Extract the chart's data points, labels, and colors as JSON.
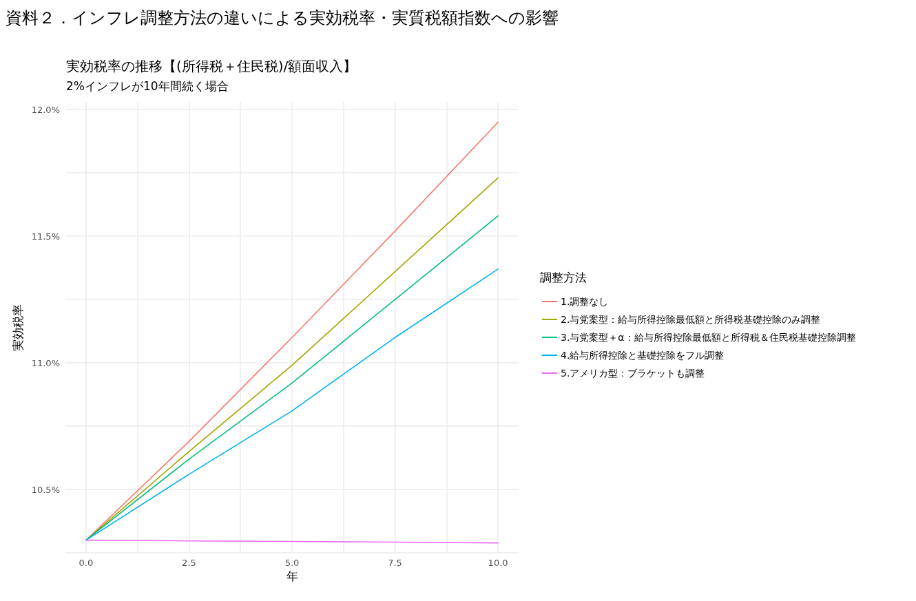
{
  "chart_data": {
    "type": "line",
    "title": "資料２．インフレ調整方法の違いによる実効税率・実質税額指数への影響",
    "subtitle": "実効税率の推移【(所得税＋住民税)/額面収入】",
    "annotations": [
      "2%インフレが10年間続く場合"
    ],
    "xlabel": "年",
    "ylabel": "実効税率",
    "legend_title": "調整方法",
    "x": [
      0,
      2.5,
      5,
      7.5,
      10
    ],
    "series": [
      {
        "name": "1.調整なし",
        "color": "#f8766d",
        "values": [
          10.3,
          10.69,
          11.1,
          11.52,
          11.95
        ]
      },
      {
        "name": "2.与党案型：給与所得控除最低額と所得税基礎控除のみ調整",
        "color": "#a3a500",
        "values": [
          10.3,
          10.65,
          10.99,
          11.36,
          11.73
        ]
      },
      {
        "name": "3.与党案型＋α：給与所得控除最低額と所得税＆住民税基礎控除調整",
        "color": "#00bf7d",
        "values": [
          10.3,
          10.62,
          10.92,
          11.25,
          11.58
        ]
      },
      {
        "name": "4.給与所得控除と基礎控除をフル調整",
        "color": "#00b0f6",
        "values": [
          10.3,
          10.56,
          10.81,
          11.1,
          11.37
        ]
      },
      {
        "name": "5.アメリカ型：ブラケットも調整",
        "color": "#e76bf3",
        "values": [
          10.3,
          10.297,
          10.295,
          10.292,
          10.289
        ]
      }
    ],
    "xlim": [
      -0.5,
      10.5
    ],
    "xticks": [
      {
        "value": 0,
        "label": "0.0"
      },
      {
        "value": 1.25,
        "label": null
      },
      {
        "value": 2.5,
        "label": "2.5"
      },
      {
        "value": 3.75,
        "label": null
      },
      {
        "value": 5,
        "label": "5.0"
      },
      {
        "value": 6.25,
        "label": null
      },
      {
        "value": 7.5,
        "label": "7.5"
      },
      {
        "value": 8.75,
        "label": null
      },
      {
        "value": 10,
        "label": "10.0"
      }
    ],
    "ylim": [
      10.25,
      12.03
    ],
    "yticks": [
      {
        "value": 10.25,
        "label": null
      },
      {
        "value": 10.5,
        "label": "10.5%"
      },
      {
        "value": 10.75,
        "label": null
      },
      {
        "value": 11,
        "label": "11.0%"
      },
      {
        "value": 11.25,
        "label": null
      },
      {
        "value": 11.5,
        "label": "11.5%"
      },
      {
        "value": 11.75,
        "label": null
      },
      {
        "value": 12,
        "label": "12.0%"
      }
    ],
    "grid": true,
    "legend": "right",
    "marker": "none",
    "line_style": "solid"
  }
}
